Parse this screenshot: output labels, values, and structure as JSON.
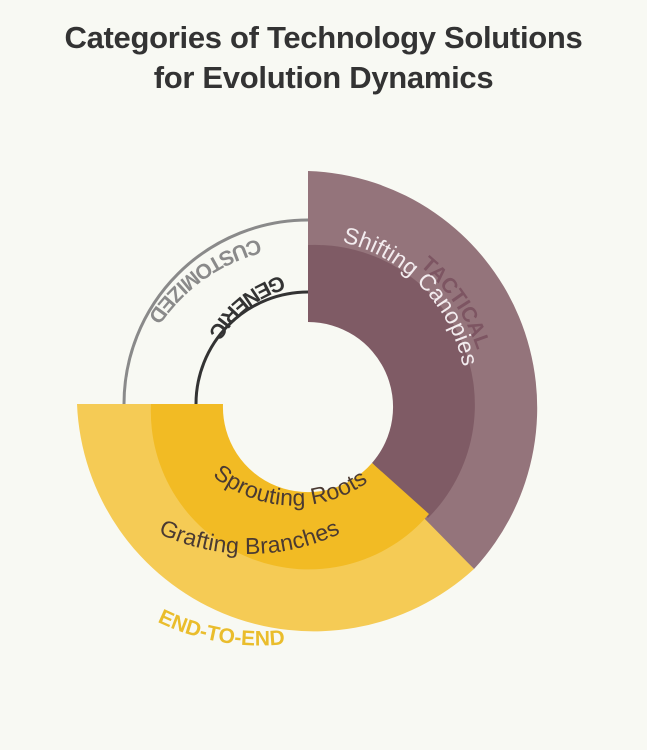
{
  "title": {
    "line1": "Categories of Technology Solutions",
    "line2": "for Evolution Dynamics"
  },
  "segments": {
    "shifting_canopies": "Shifting Canopies",
    "sprouting_roots": "Sprouting Roots",
    "grafting_branches": "Grafting Branches"
  },
  "categories": {
    "tactical": "TACTICAL",
    "end_to_end": "END-TO-END",
    "customized": "CUSTOMIZED",
    "generic": "GENERIC"
  },
  "colors": {
    "background": "#f8f9f3",
    "title": "#333333",
    "tactical_outer": "#94747b",
    "tactical_inner": "#7f5b65",
    "tactical_label": "#7d5562",
    "end_to_end_outer": "#f5cb55",
    "end_to_end_inner": "#f2bb24",
    "end_to_end_label": "#eabd2c",
    "customized_ring": "#8a8a8a",
    "generic_ring": "#333333",
    "segment_text_dark": "#4a3a32",
    "segment_text_light": "#f3ecef"
  }
}
